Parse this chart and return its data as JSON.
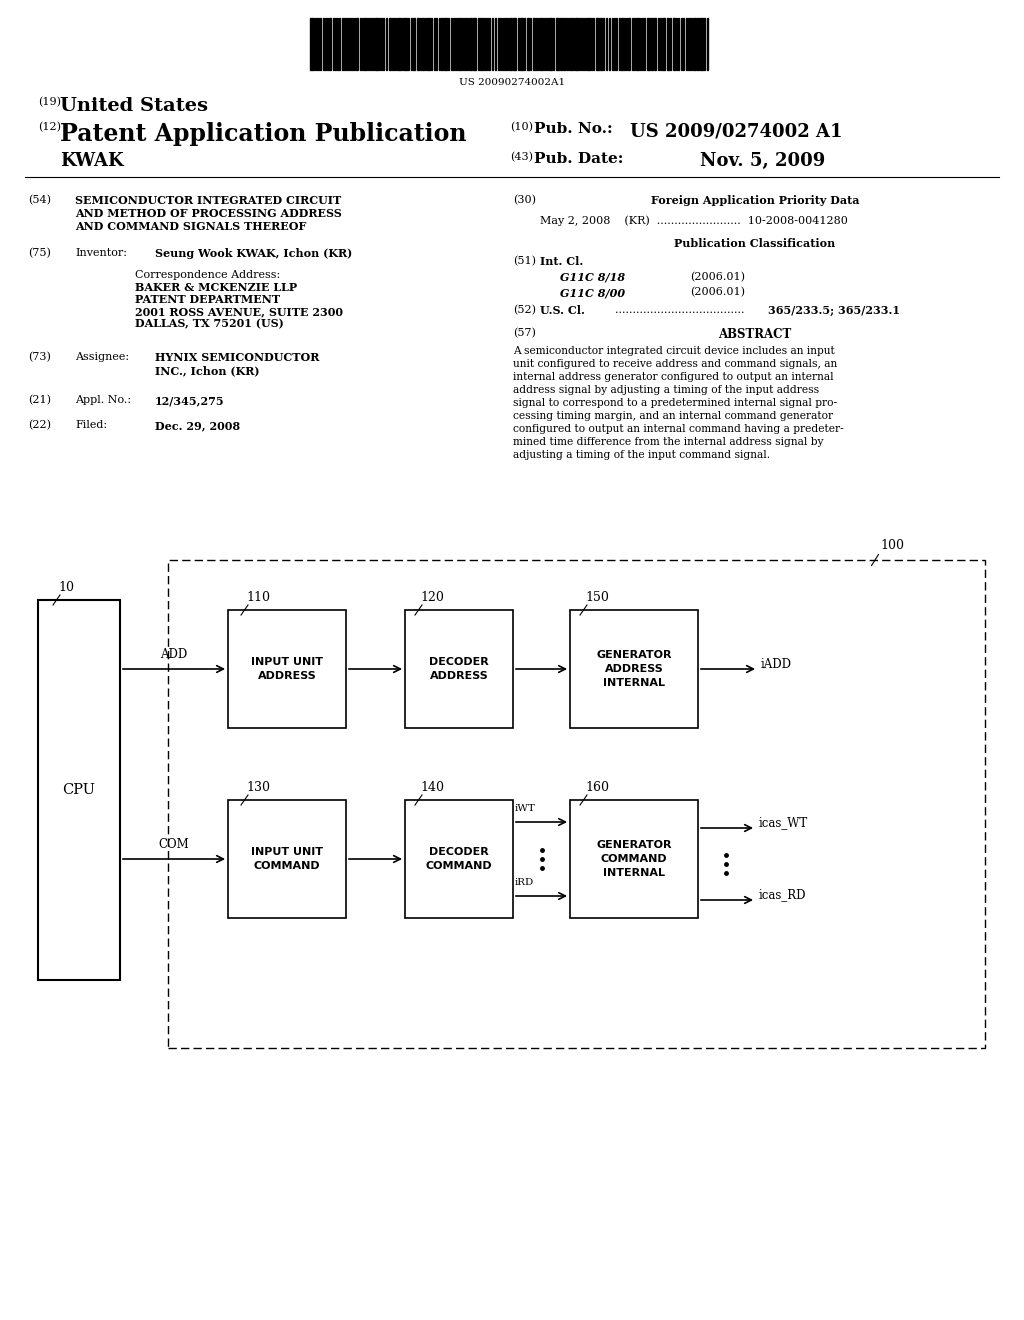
{
  "bg_color": "#ffffff",
  "barcode_text": "US 20090274002A1",
  "header_19": "(19)",
  "header_19_text": "United States",
  "header_12": "(12)",
  "header_12_text": "Patent Application Publication",
  "header_kwak": "KWAK",
  "header_10_label": "(10)",
  "header_10_text": "Pub. No.:",
  "header_10_value": "US 2009/0274002 A1",
  "header_43_label": "(43)",
  "header_43_text": "Pub. Date:",
  "header_43_value": "Nov. 5, 2009",
  "field_54_label": "(54)",
  "field_54_title": "SEMICONDUCTOR INTEGRATED CIRCUIT\nAND METHOD OF PROCESSING ADDRESS\nAND COMMAND SIGNALS THEREOF",
  "field_75_label": "(75)",
  "field_75_key": "Inventor:",
  "field_75_value": "Seung Wook KWAK, Ichon (KR)",
  "field_corr": "Correspondence Address:",
  "field_corr_addr1": "BAKER & MCKENZIE LLP",
  "field_corr_addr2": "PATENT DEPARTMENT",
  "field_corr_addr3": "2001 ROSS AVENUE, SUITE 2300",
  "field_corr_addr4": "DALLAS, TX 75201 (US)",
  "field_73_label": "(73)",
  "field_73_key": "Assignee:",
  "field_73_value1": "HYNIX SEMICONDUCTOR",
  "field_73_value2": "INC., Ichon (KR)",
  "field_21_label": "(21)",
  "field_21_key": "Appl. No.:",
  "field_21_value": "12/345,275",
  "field_22_label": "(22)",
  "field_22_key": "Filed:",
  "field_22_value": "Dec. 29, 2008",
  "field_30_label": "(30)",
  "field_30_title": "Foreign Application Priority Data",
  "field_30_data": "May 2, 2008    (KR)  ........................  10-2008-0041280",
  "pub_class_title": "Publication Classification",
  "field_51_label": "(51)",
  "field_51_key": "Int. Cl.",
  "field_51_val1": "G11C 8/18",
  "field_51_date1": "(2006.01)",
  "field_51_val2": "G11C 8/00",
  "field_51_date2": "(2006.01)",
  "field_52_label": "(52)",
  "field_52_key": "U.S. Cl.",
  "field_52_dots": ".....................................",
  "field_52_value": "365/233.5; 365/233.1",
  "field_57_label": "(57)",
  "field_57_title": "ABSTRACT",
  "field_57_text1": "A semiconductor integrated circuit device includes an input",
  "field_57_text2": "unit configured to receive address and command signals, an",
  "field_57_text3": "internal address generator configured to output an internal",
  "field_57_text4": "address signal by adjusting a timing of the input address",
  "field_57_text5": "signal to correspond to a predetermined internal signal pro-",
  "field_57_text6": "cessing timing margin, and an internal command generator",
  "field_57_text7": "configured to output an internal command having a predeter-",
  "field_57_text8": "mined time difference from the internal address signal by",
  "field_57_text9": "adjusting a timing of the input command signal.",
  "diagram": {
    "outer_box_label": "100",
    "cpu_label": "CPU",
    "cpu_num": "10",
    "add_label": "ADD",
    "com_label": "COM",
    "box110_label": "110",
    "box110_text1": "ADDRESS",
    "box110_text2": "INPUT UNIT",
    "box120_label": "120",
    "box120_text1": "ADDRESS",
    "box120_text2": "DECODER",
    "box150_label": "150",
    "box150_text1": "INTERNAL",
    "box150_text2": "ADDRESS",
    "box150_text3": "GENERATOR",
    "box150_out": "iADD",
    "box130_label": "130",
    "box130_text1": "COMMAND",
    "box130_text2": "INPUT UNIT",
    "box140_label": "140",
    "box140_text1": "COMMAND",
    "box140_text2": "DECODER",
    "box160_label": "160",
    "box160_text1": "INTERNAL",
    "box160_text2": "COMMAND",
    "box160_text3": "GENERATOR",
    "box160_out1": "icas_WT",
    "box160_iWT": "iWT",
    "box160_iRD": "iRD",
    "box160_out2": "icas_RD"
  }
}
